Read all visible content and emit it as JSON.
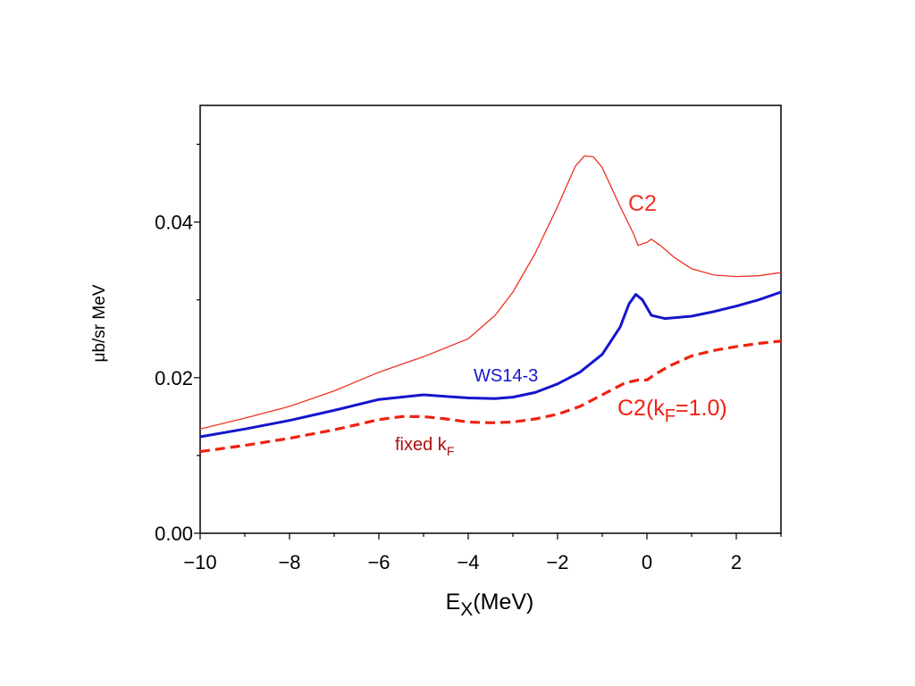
{
  "chart_data": {
    "type": "line",
    "xlabel": {
      "main": "E",
      "sub": "X",
      "rest": "(MeV)"
    },
    "ylabel": "μb/sr MeV",
    "xlim": [
      -10,
      3
    ],
    "ylim": [
      0,
      0.055
    ],
    "x_ticks": [
      -10,
      -8,
      -6,
      -4,
      -2,
      0,
      2
    ],
    "x_tick_labels": [
      "−10",
      "−8",
      "−6",
      "−4",
      "−2",
      "0",
      "2"
    ],
    "y_ticks": [
      0.0,
      0.02,
      0.04
    ],
    "y_tick_labels": [
      "0.00",
      "0.02",
      "0.04"
    ],
    "grid": false,
    "series": [
      {
        "name": "C2",
        "color": "#ee3322",
        "style": "thin-solid",
        "x": [
          -10,
          -9,
          -8,
          -7,
          -6,
          -5,
          -4,
          -3.4,
          -3,
          -2.5,
          -2,
          -1.6,
          -1.4,
          -1.2,
          -1.0,
          -0.6,
          -0.3,
          -0.2,
          0.0,
          0.1,
          0.3,
          0.6,
          1.0,
          1.5,
          2.0,
          2.5,
          3.0
        ],
        "y": [
          0.0134,
          0.0148,
          0.0163,
          0.0183,
          0.0207,
          0.0227,
          0.025,
          0.028,
          0.031,
          0.036,
          0.042,
          0.0472,
          0.0485,
          0.0484,
          0.047,
          0.042,
          0.0385,
          0.037,
          0.0374,
          0.0378,
          0.037,
          0.0355,
          0.034,
          0.0332,
          0.033,
          0.0331,
          0.0335
        ]
      },
      {
        "name": "WS14-3",
        "color": "#1515cc",
        "style": "thick-solid",
        "x": [
          -10,
          -9,
          -8,
          -7,
          -6,
          -5,
          -4,
          -3.4,
          -3,
          -2.5,
          -2,
          -1.5,
          -1.0,
          -0.6,
          -0.4,
          -0.25,
          -0.1,
          0.1,
          0.4,
          1.0,
          1.5,
          2.0,
          2.5,
          3.0
        ],
        "y": [
          0.0124,
          0.0134,
          0.0145,
          0.0158,
          0.0172,
          0.0178,
          0.0174,
          0.0173,
          0.0175,
          0.0181,
          0.0192,
          0.0207,
          0.023,
          0.0265,
          0.0295,
          0.0307,
          0.03,
          0.028,
          0.0276,
          0.0279,
          0.0285,
          0.0292,
          0.03,
          0.031
        ]
      },
      {
        "name": "C2(kF=1.0)",
        "color": "#ee2211",
        "style": "dashed",
        "x": [
          -10,
          -9,
          -8,
          -7,
          -6,
          -5.5,
          -5,
          -4.5,
          -4,
          -3.5,
          -3,
          -2.5,
          -2,
          -1.5,
          -1.0,
          -0.5,
          -0.2,
          0.0,
          0.2,
          0.5,
          1.0,
          1.5,
          2.0,
          2.5,
          3.0
        ],
        "y": [
          0.0105,
          0.0113,
          0.0122,
          0.0133,
          0.0146,
          0.015,
          0.015,
          0.0147,
          0.0143,
          0.0142,
          0.0143,
          0.0147,
          0.0153,
          0.0163,
          0.0178,
          0.0193,
          0.0197,
          0.0197,
          0.0205,
          0.0215,
          0.0228,
          0.0235,
          0.024,
          0.0244,
          0.0247
        ]
      }
    ],
    "annotations": [
      {
        "id": "c2",
        "text": "C2",
        "color": "#ee3322"
      },
      {
        "id": "ws",
        "text": "WS14-3",
        "color": "#1515cc"
      },
      {
        "id": "kf",
        "text_main": "C2(k",
        "text_sub": "F",
        "text_rest": "=1.0)",
        "color": "#ee2211"
      },
      {
        "id": "fixed",
        "text_main": "fixed k",
        "text_sub": "F",
        "color": "#aa1111"
      }
    ]
  }
}
